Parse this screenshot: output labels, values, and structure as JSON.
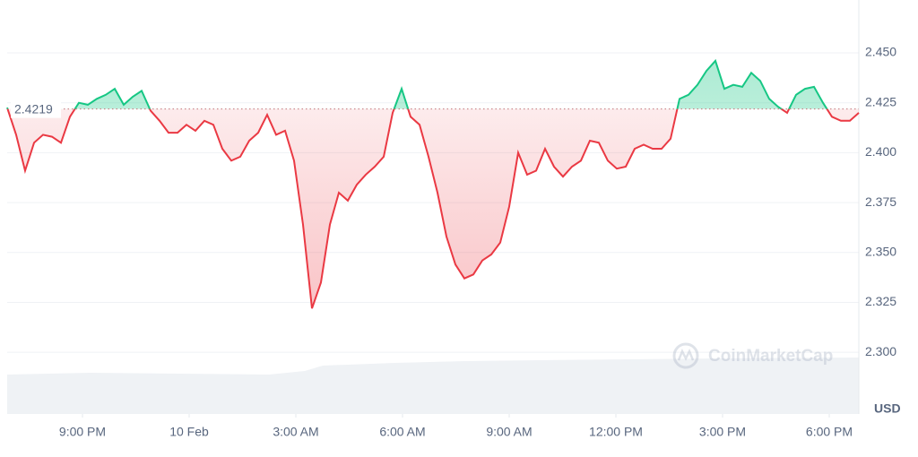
{
  "chart_data": {
    "type": "line",
    "watermark": "CoinMarketCap",
    "currency": "USD",
    "reference": 2.4219,
    "xlim": [
      0,
      95
    ],
    "xticks": [
      {
        "value": 8.4,
        "label": "9:00 PM"
      },
      {
        "value": 20.3,
        "label": "10 Feb"
      },
      {
        "value": 32.2,
        "label": "3:00 AM"
      },
      {
        "value": 44.1,
        "label": "6:00 AM"
      },
      {
        "value": 56,
        "label": "9:00 AM"
      },
      {
        "value": 67.9,
        "label": "12:00 PM"
      },
      {
        "value": 79.8,
        "label": "3:00 PM"
      },
      {
        "value": 91.7,
        "label": "6:00 PM"
      }
    ],
    "ylim": [
      2.2691,
      2.4765
    ],
    "yticks": [
      {
        "value": 2.3,
        "label": "2.300"
      },
      2.325,
      {
        "value": 2.35,
        "label": "2.350"
      },
      2.375,
      {
        "value": 2.4,
        "label": "2.400"
      },
      2.425,
      {
        "value": 2.45,
        "label": "2.450"
      }
    ],
    "grid": true,
    "up_color": "#16c784",
    "down_color": "#ea3943",
    "values": [
      2.4226,
      2.409,
      2.391,
      2.405,
      2.409,
      2.408,
      2.405,
      2.418,
      2.425,
      2.424,
      2.427,
      2.429,
      2.432,
      2.424,
      2.428,
      2.431,
      2.421,
      2.416,
      2.41,
      2.41,
      2.414,
      2.411,
      2.416,
      2.414,
      2.402,
      2.396,
      2.398,
      2.406,
      2.41,
      2.419,
      2.409,
      2.411,
      2.396,
      2.364,
      2.322,
      2.335,
      2.364,
      2.38,
      2.376,
      2.384,
      2.389,
      2.393,
      2.398,
      2.42,
      2.432,
      2.418,
      2.414,
      2.398,
      2.38,
      2.358,
      2.344,
      2.337,
      2.339,
      2.346,
      2.349,
      2.355,
      2.373,
      2.4,
      2.389,
      2.391,
      2.402,
      2.393,
      2.388,
      2.393,
      2.396,
      2.406,
      2.405,
      2.396,
      2.392,
      2.393,
      2.402,
      2.404,
      2.402,
      2.402,
      2.407,
      2.427,
      2.429,
      2.434,
      2.441,
      2.446,
      2.432,
      2.434,
      2.433,
      2.44,
      2.436,
      2.427,
      2.423,
      2.42,
      2.429,
      2.432,
      2.433,
      2.425,
      2.418,
      2.416,
      2.416,
      2.42
    ]
  }
}
